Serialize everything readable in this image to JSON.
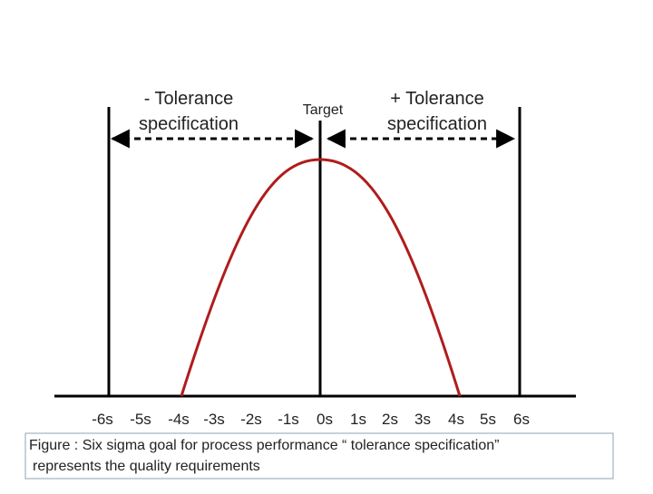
{
  "minus_tolerance": {
    "line1": "- Tolerance",
    "line2": "specification"
  },
  "target": "Target",
  "plus_tolerance": {
    "line1": "+ Tolerance",
    "line2": "specification"
  },
  "axis_labels": [
    "-6s",
    "-5s",
    "-4s",
    "-3s",
    "-2s",
    "-1s",
    "0s",
    "1s",
    "2s",
    "3s",
    "4s",
    "5s",
    "6s"
  ],
  "caption": {
    "line1": "Figure : Six sigma goal for process performance “ tolerance specification”",
    "line2": "represents the quality requirements"
  }
}
